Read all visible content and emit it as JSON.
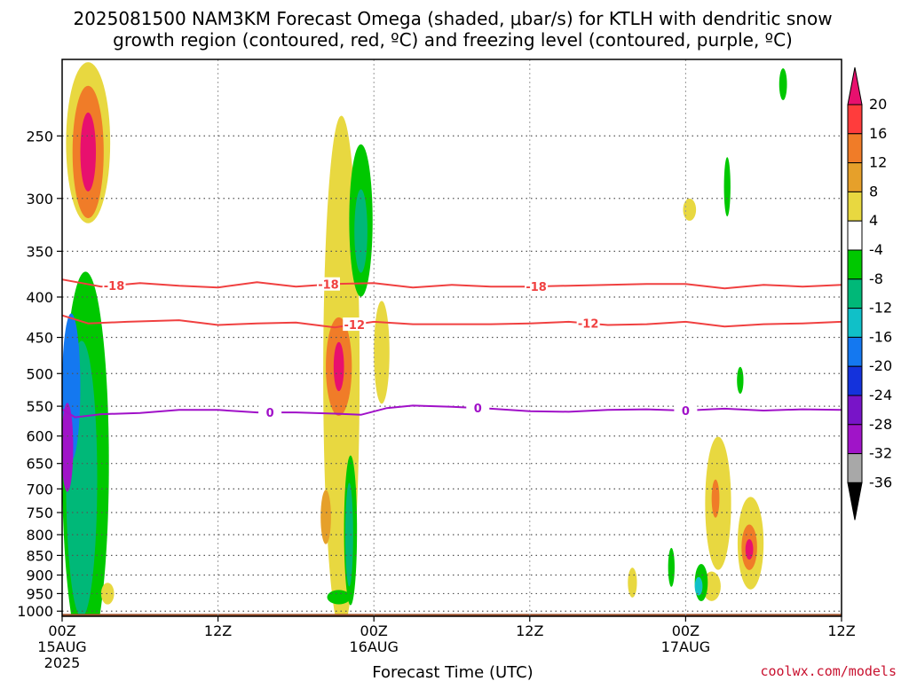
{
  "header": {
    "title_line1": "2025081500 NAM3KM Forecast Omega (shaded, μbar/s) for KTLH with dendritic snow",
    "title_line2": "growth region (contoured, red, ºC) and freezing level (contoured, purple, ºC)"
  },
  "footer": {
    "credit": "coolwx.com/models"
  },
  "chart_data": {
    "type": "heatmap",
    "title": "2025081500 NAM3KM Forecast Omega (shaded, μbar/s) for KTLH with dendritic snow growth region (contoured, red, ºC) and freezing level (contoured, purple, ºC)",
    "xlabel": "Forecast Time (UTC)",
    "ylabel": "",
    "x_range_hours": [
      0,
      60
    ],
    "y_range_hpa": [
      1015,
      200
    ],
    "y_scale": "log",
    "grid": true,
    "x_ticks": [
      {
        "hour": 0,
        "line1": "00Z",
        "line2": "15AUG",
        "line3": "2025"
      },
      {
        "hour": 12,
        "line1": "12Z",
        "line2": "",
        "line3": ""
      },
      {
        "hour": 24,
        "line1": "00Z",
        "line2": "16AUG",
        "line3": ""
      },
      {
        "hour": 36,
        "line1": "12Z",
        "line2": "",
        "line3": ""
      },
      {
        "hour": 48,
        "line1": "00Z",
        "line2": "17AUG",
        "line3": ""
      },
      {
        "hour": 60,
        "line1": "12Z",
        "line2": "",
        "line3": ""
      }
    ],
    "y_ticks": [
      250,
      300,
      350,
      400,
      450,
      500,
      550,
      600,
      650,
      700,
      750,
      800,
      850,
      900,
      950,
      1000
    ],
    "colorbar": {
      "levels": [
        20,
        16,
        12,
        8,
        4,
        -4,
        -8,
        -12,
        -16,
        -20,
        -24,
        -28,
        -32,
        -36
      ],
      "colors_top_to_bottom": [
        "#e8106e",
        "#ff3c3c",
        "#f07c28",
        "#e6a02a",
        "#e8d840",
        "#ffffff",
        "#00c800",
        "#00b878",
        "#10c0c8",
        "#1478f0",
        "#1432dc",
        "#7814c8",
        "#a014c8",
        "#a8a8a8",
        "#000000"
      ],
      "placement": "right"
    },
    "omega_regions": [
      {
        "hour": 2.0,
        "p": 255,
        "dh": 1.7,
        "dp": 65,
        "value": 4
      },
      {
        "hour": 2.0,
        "p": 262,
        "dh": 1.2,
        "dp": 50,
        "value": 12
      },
      {
        "hour": 2.0,
        "p": 262,
        "dh": 0.6,
        "dp": 30,
        "value": 20
      },
      {
        "hour": 1.8,
        "p": 650,
        "dh": 1.8,
        "dp": 330,
        "value": -8
      },
      {
        "hour": 1.5,
        "p": 680,
        "dh": 1.2,
        "dp": 260,
        "value": -12
      },
      {
        "hour": 0.7,
        "p": 520,
        "dh": 0.7,
        "dp": 110,
        "value": -20
      },
      {
        "hour": 0.4,
        "p": 620,
        "dh": 0.45,
        "dp": 80,
        "value": -32
      },
      {
        "hour": 3.5,
        "p": 950,
        "dh": 0.5,
        "dp": 30,
        "value": 4
      },
      {
        "hour": 21.5,
        "p": 500,
        "dh": 1.4,
        "dp": 400,
        "value": 4
      },
      {
        "hour": 21.3,
        "p": 490,
        "dh": 1.0,
        "dp": 70,
        "value": 12
      },
      {
        "hour": 21.3,
        "p": 490,
        "dh": 0.4,
        "dp": 35,
        "value": 20
      },
      {
        "hour": 20.3,
        "p": 760,
        "dh": 0.4,
        "dp": 60,
        "value": 8
      },
      {
        "hour": 23.0,
        "p": 320,
        "dh": 0.9,
        "dp": 70,
        "value": -8
      },
      {
        "hour": 23.0,
        "p": 330,
        "dh": 0.5,
        "dp": 40,
        "value": -12
      },
      {
        "hour": 22.2,
        "p": 790,
        "dh": 0.5,
        "dp": 170,
        "value": -8
      },
      {
        "hour": 22.1,
        "p": 800,
        "dh": 0.3,
        "dp": 120,
        "value": -12
      },
      {
        "hour": 21.3,
        "p": 960,
        "dh": 0.9,
        "dp": 20,
        "value": -8
      },
      {
        "hour": 24.6,
        "p": 470,
        "dh": 0.6,
        "dp": 70,
        "value": 4
      },
      {
        "hour": 50.5,
        "p": 730,
        "dh": 1.0,
        "dp": 140,
        "value": 4
      },
      {
        "hour": 50.3,
        "p": 720,
        "dh": 0.3,
        "dp": 40,
        "value": 12
      },
      {
        "hour": 53.0,
        "p": 820,
        "dh": 1.0,
        "dp": 110,
        "value": 4
      },
      {
        "hour": 52.9,
        "p": 830,
        "dh": 0.6,
        "dp": 55,
        "value": 12
      },
      {
        "hour": 52.9,
        "p": 835,
        "dh": 0.3,
        "dp": 25,
        "value": 20
      },
      {
        "hour": 50.0,
        "p": 930,
        "dh": 0.7,
        "dp": 40,
        "value": 4
      },
      {
        "hour": 49.2,
        "p": 920,
        "dh": 0.5,
        "dp": 50,
        "value": -8
      },
      {
        "hour": 49.0,
        "p": 930,
        "dh": 0.3,
        "dp": 25,
        "value": -16
      },
      {
        "hour": 46.9,
        "p": 880,
        "dh": 0.25,
        "dp": 50,
        "value": -8
      },
      {
        "hour": 43.9,
        "p": 920,
        "dh": 0.35,
        "dp": 40,
        "value": 4
      },
      {
        "hour": 48.3,
        "p": 310,
        "dh": 0.5,
        "dp": 10,
        "value": 4
      },
      {
        "hour": 51.2,
        "p": 290,
        "dh": 0.25,
        "dp": 25,
        "value": -8
      },
      {
        "hour": 52.2,
        "p": 510,
        "dh": 0.25,
        "dp": 20,
        "value": -8
      },
      {
        "hour": 55.5,
        "p": 215,
        "dh": 0.3,
        "dp": 10,
        "value": -8
      }
    ],
    "contours": [
      {
        "label": "-18",
        "color": "#f04040",
        "label_hours": [
          4,
          20.5,
          36.5
        ],
        "points": [
          [
            0,
            380
          ],
          [
            3,
            388
          ],
          [
            6,
            384
          ],
          [
            9,
            387
          ],
          [
            12,
            389
          ],
          [
            15,
            383
          ],
          [
            18,
            388
          ],
          [
            21,
            385
          ],
          [
            24,
            384
          ],
          [
            27,
            389
          ],
          [
            30,
            386
          ],
          [
            33,
            388
          ],
          [
            36,
            388
          ],
          [
            39,
            387
          ],
          [
            42,
            386
          ],
          [
            45,
            385
          ],
          [
            48,
            385
          ],
          [
            51,
            390
          ],
          [
            54,
            386
          ],
          [
            57,
            388
          ],
          [
            60,
            386
          ]
        ]
      },
      {
        "label": "-12",
        "color": "#f04040",
        "label_hours": [
          22.5,
          40.5
        ],
        "points": [
          [
            0,
            422
          ],
          [
            2,
            432
          ],
          [
            5,
            430
          ],
          [
            9,
            428
          ],
          [
            12,
            434
          ],
          [
            15,
            432
          ],
          [
            18,
            431
          ],
          [
            21,
            437
          ],
          [
            24,
            430
          ],
          [
            27,
            433
          ],
          [
            30,
            433
          ],
          [
            33,
            433
          ],
          [
            36,
            432
          ],
          [
            39,
            430
          ],
          [
            42,
            434
          ],
          [
            45,
            433
          ],
          [
            48,
            430
          ],
          [
            51,
            436
          ],
          [
            54,
            433
          ],
          [
            57,
            432
          ],
          [
            60,
            430
          ]
        ]
      },
      {
        "label": "0",
        "color": "#a010c8",
        "label_hours": [
          16,
          32,
          48
        ],
        "points": [
          [
            0,
            555
          ],
          [
            1,
            568
          ],
          [
            3,
            563
          ],
          [
            6,
            561
          ],
          [
            9,
            556
          ],
          [
            12,
            556
          ],
          [
            15,
            560
          ],
          [
            18,
            560
          ],
          [
            21,
            562
          ],
          [
            23,
            564
          ],
          [
            25,
            553
          ],
          [
            27,
            549
          ],
          [
            30,
            551
          ],
          [
            33,
            554
          ],
          [
            36,
            558
          ],
          [
            39,
            559
          ],
          [
            42,
            556
          ],
          [
            45,
            555
          ],
          [
            48,
            557
          ],
          [
            51,
            554
          ],
          [
            54,
            557
          ],
          [
            57,
            555
          ],
          [
            60,
            556
          ]
        ]
      }
    ],
    "terrain": {
      "color": "#a0522d",
      "top_hpa": 1008
    }
  }
}
